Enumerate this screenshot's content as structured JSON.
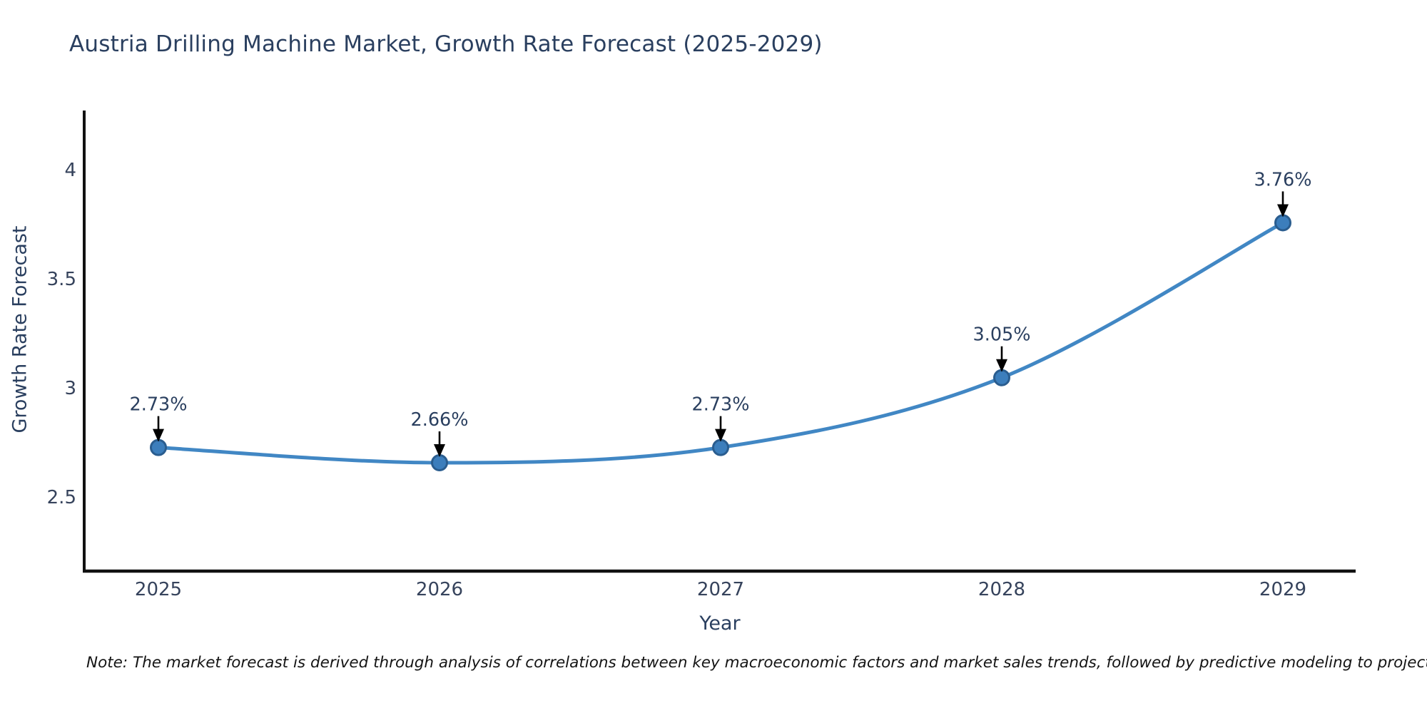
{
  "title": "Austria Drilling Machine Market, Growth Rate Forecast (2025-2029)",
  "note": "Note: The market forecast is derived through analysis of correlations between key macroeconomic factors and market sales trends, followed by predictive modeling to project future sales",
  "chart_data": {
    "type": "line",
    "title": "Austria Drilling Machine Market, Growth Rate Forecast (2025-2029)",
    "xlabel": "Year",
    "ylabel": "Growth Rate Forecast",
    "categories": [
      "2025",
      "2026",
      "2027",
      "2028",
      "2029"
    ],
    "series": [
      {
        "name": "Growth Rate Forecast",
        "values": [
          2.73,
          2.66,
          2.73,
          3.05,
          3.76
        ]
      }
    ],
    "point_labels": [
      "2.73%",
      "2.66%",
      "2.73%",
      "3.05%",
      "3.76%"
    ],
    "ytick_values": [
      2.5,
      3,
      3.5,
      4
    ],
    "ytick_labels": [
      "2.5",
      "3",
      "3.5",
      "4"
    ],
    "ylim": [
      2.17,
      4.27
    ],
    "line_shape": "spline",
    "grid": false,
    "legend_position": "none",
    "annotations_have_arrows": true,
    "colors": {
      "line": "#4187c4",
      "marker_fill": "#3c7ebc",
      "marker_edge": "#2a5d8f",
      "axis_line": "#111111",
      "title_text": "#2a3f5f",
      "tick_text": "#36435c",
      "annotation_text": "#2a3f5f",
      "arrow": "#000000"
    }
  }
}
